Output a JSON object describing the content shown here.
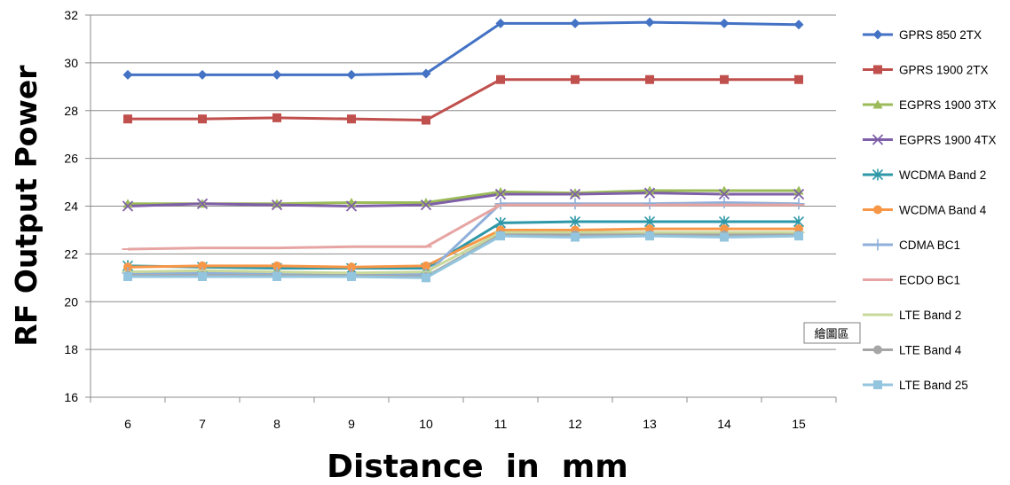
{
  "chart_data": {
    "type": "line",
    "title": "",
    "xlabel": "Distance  in  mm",
    "ylabel": "RF Output Power",
    "categories": [
      "6",
      "7",
      "8",
      "9",
      "10",
      "11",
      "12",
      "13",
      "14",
      "15"
    ],
    "ylim": [
      16,
      32
    ],
    "yticks": [
      "16",
      "18",
      "20",
      "22",
      "24",
      "26",
      "28",
      "30",
      "32"
    ],
    "grid": true,
    "legend_position": "right",
    "series": [
      {
        "name": "GPRS 850 2TX",
        "color": "#4472C4",
        "marker": "diamond",
        "values": [
          29.5,
          29.5,
          29.5,
          29.5,
          29.55,
          31.65,
          31.65,
          31.7,
          31.65,
          31.6
        ]
      },
      {
        "name": "GPRS 1900 2TX",
        "color": "#C0504D",
        "marker": "square",
        "values": [
          27.65,
          27.65,
          27.7,
          27.65,
          27.6,
          29.3,
          29.3,
          29.3,
          29.3,
          29.3
        ]
      },
      {
        "name": "EGPRS 1900 3TX",
        "color": "#9BBB59",
        "marker": "triangle",
        "values": [
          24.1,
          24.1,
          24.1,
          24.15,
          24.15,
          24.6,
          24.55,
          24.65,
          24.65,
          24.65
        ]
      },
      {
        "name": "EGPRS 1900 4TX",
        "color": "#7F5FA8",
        "marker": "x",
        "values": [
          24.0,
          24.1,
          24.05,
          24.0,
          24.05,
          24.5,
          24.5,
          24.55,
          24.5,
          24.5
        ]
      },
      {
        "name": "WCDMA Band 2",
        "color": "#2E98A8",
        "marker": "star",
        "values": [
          21.5,
          21.45,
          21.4,
          21.4,
          21.4,
          23.3,
          23.35,
          23.35,
          23.35,
          23.35
        ]
      },
      {
        "name": "WCDMA Band 4",
        "color": "#F79646",
        "marker": "circle",
        "values": [
          21.45,
          21.5,
          21.5,
          21.45,
          21.5,
          23.0,
          23.0,
          23.05,
          23.05,
          23.05
        ]
      },
      {
        "name": "CDMA BC1",
        "color": "#8FAFD9",
        "marker": "plus",
        "values": [
          21.2,
          21.2,
          21.2,
          21.15,
          21.15,
          24.1,
          24.1,
          24.1,
          24.15,
          24.1
        ]
      },
      {
        "name": "ECDO BC1",
        "color": "#E6A5A3",
        "marker": "dash",
        "values": [
          22.2,
          22.25,
          22.25,
          22.3,
          22.3,
          24.05,
          24.05,
          24.05,
          24.05,
          24.05
        ]
      },
      {
        "name": "LTE Band 2",
        "color": "#C9D99B",
        "marker": "dash",
        "values": [
          21.25,
          21.3,
          21.25,
          21.2,
          21.25,
          22.9,
          22.9,
          22.9,
          22.9,
          22.9
        ]
      },
      {
        "name": "LTE Band 4",
        "color": "#A6A6A6",
        "marker": "circle",
        "values": [
          21.1,
          21.1,
          21.1,
          21.1,
          21.05,
          22.8,
          22.8,
          22.8,
          22.8,
          22.8
        ]
      },
      {
        "name": "LTE Band 25",
        "color": "#93C5DE",
        "marker": "square",
        "values": [
          21.05,
          21.05,
          21.05,
          21.05,
          21.0,
          22.75,
          22.7,
          22.75,
          22.7,
          22.75
        ]
      }
    ],
    "tooltip": "繪圖區"
  }
}
